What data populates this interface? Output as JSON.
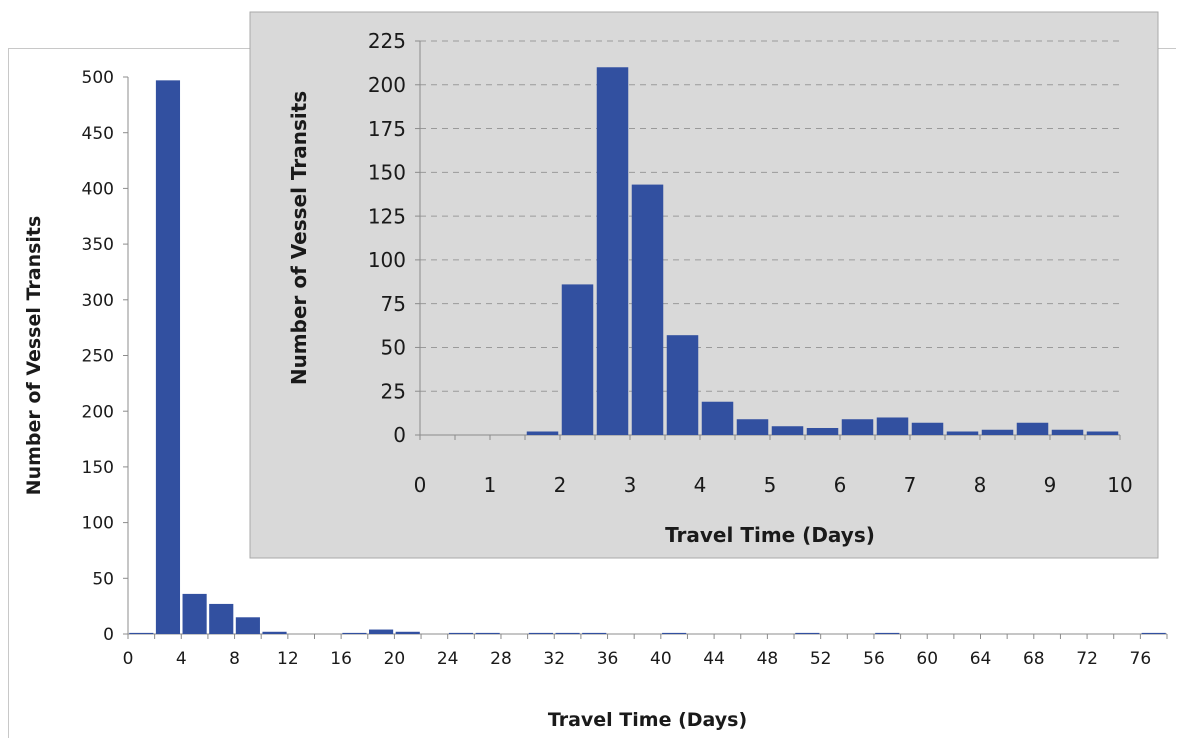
{
  "chart_data": [
    {
      "type": "bar",
      "xlabel": "Travel Time (Days)",
      "ylabel": "Number of Vessel Transits",
      "ylim": [
        0,
        500
      ],
      "yticks": [
        0,
        50,
        100,
        150,
        200,
        250,
        300,
        350,
        400,
        450,
        500
      ],
      "xlim": [
        0,
        78
      ],
      "xticks": [
        0,
        4,
        8,
        12,
        16,
        20,
        24,
        28,
        32,
        36,
        40,
        44,
        48,
        52,
        56,
        60,
        64,
        68,
        72,
        76
      ],
      "bin_width": 2,
      "x": [
        0,
        2,
        4,
        6,
        8,
        10,
        16,
        18,
        20,
        24,
        26,
        30,
        32,
        34,
        40,
        50,
        56,
        76
      ],
      "values": [
        1,
        497,
        36,
        27,
        15,
        2,
        1,
        4,
        2,
        1,
        1,
        1,
        1,
        1,
        1,
        1,
        1,
        1
      ],
      "color": "#3250a0",
      "grid": false
    },
    {
      "type": "bar",
      "xlabel": "Travel Time (Days)",
      "ylabel": "Number of Vessel Transits",
      "ylim": [
        0,
        225
      ],
      "yticks": [
        0,
        25,
        50,
        75,
        100,
        125,
        150,
        175,
        200,
        225
      ],
      "xlim": [
        0,
        10
      ],
      "xticks": [
        0,
        1,
        2,
        3,
        4,
        5,
        6,
        7,
        8,
        9,
        10
      ],
      "bin_width": 0.5,
      "x": [
        1.5,
        2,
        2.5,
        3,
        3.5,
        4,
        4.5,
        5,
        5.5,
        6,
        6.5,
        7,
        7.5,
        8,
        8.5,
        9,
        9.5
      ],
      "values": [
        2,
        86,
        210,
        143,
        57,
        19,
        9,
        5,
        4,
        9,
        10,
        7,
        2,
        3,
        7,
        3,
        2
      ],
      "color": "#3250a0",
      "grid": true,
      "background": "#d9d9d9"
    }
  ]
}
